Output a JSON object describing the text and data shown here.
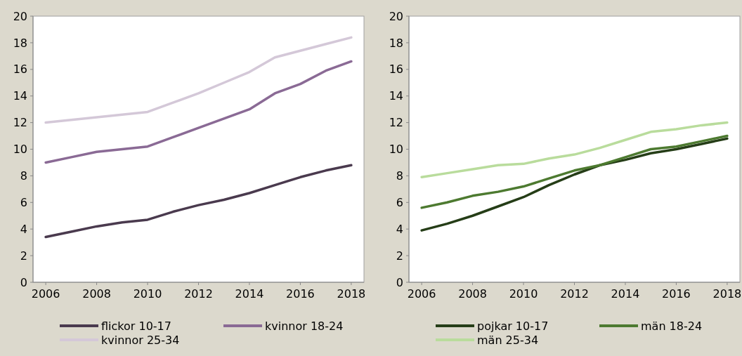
{
  "chart_data": [
    {
      "type": "line",
      "x": [
        2006,
        2007,
        2008,
        2009,
        2010,
        2011,
        2012,
        2013,
        2014,
        2015,
        2016,
        2017,
        2018
      ],
      "xlim": [
        2005.5,
        2018.5
      ],
      "xticks": [
        2006,
        2008,
        2010,
        2012,
        2014,
        2016,
        2018
      ],
      "ylim": [
        0,
        20
      ],
      "yticks": [
        0,
        2,
        4,
        6,
        8,
        10,
        12,
        14,
        16,
        18,
        20
      ],
      "grid": false,
      "legend": "bottom",
      "series": [
        {
          "name": "flickor 10-17",
          "color": "#4a3a4e",
          "values": [
            3.4,
            3.8,
            4.2,
            4.5,
            4.7,
            5.3,
            5.8,
            6.2,
            6.7,
            7.3,
            7.9,
            8.4,
            8.8
          ]
        },
        {
          "name": "kvinnor 18-24",
          "color": "#8a6a95",
          "values": [
            9.0,
            9.4,
            9.8,
            10.0,
            10.2,
            10.9,
            11.6,
            12.3,
            13.0,
            14.2,
            14.9,
            15.9,
            16.6
          ]
        },
        {
          "name": "kvinnor 25-34",
          "color": "#d4c8d8",
          "values": [
            12.0,
            12.2,
            12.4,
            12.6,
            12.8,
            13.5,
            14.2,
            15.0,
            15.8,
            16.9,
            17.4,
            17.9,
            18.4
          ]
        }
      ]
    },
    {
      "type": "line",
      "x": [
        2006,
        2007,
        2008,
        2009,
        2010,
        2011,
        2012,
        2013,
        2014,
        2015,
        2016,
        2017,
        2018
      ],
      "xlim": [
        2005.5,
        2018.5
      ],
      "xticks": [
        2006,
        2008,
        2010,
        2012,
        2014,
        2016,
        2018
      ],
      "ylim": [
        0,
        20
      ],
      "yticks": [
        0,
        2,
        4,
        6,
        8,
        10,
        12,
        14,
        16,
        18,
        20
      ],
      "grid": false,
      "legend": "bottom",
      "series": [
        {
          "name": "pojkar 10-17",
          "color": "#253d17",
          "values": [
            3.9,
            4.4,
            5.0,
            5.7,
            6.4,
            7.3,
            8.1,
            8.8,
            9.2,
            9.7,
            10.0,
            10.4,
            10.8
          ]
        },
        {
          "name": "män 18-24",
          "color": "#4d7a30",
          "values": [
            5.6,
            6.0,
            6.5,
            6.8,
            7.2,
            7.8,
            8.4,
            8.8,
            9.4,
            10.0,
            10.2,
            10.6,
            11.0
          ]
        },
        {
          "name": "män 25-34",
          "color": "#b9dc9c",
          "values": [
            7.9,
            8.2,
            8.5,
            8.8,
            8.9,
            9.3,
            9.6,
            10.1,
            10.7,
            11.3,
            11.5,
            11.8,
            12.0
          ]
        }
      ]
    }
  ]
}
